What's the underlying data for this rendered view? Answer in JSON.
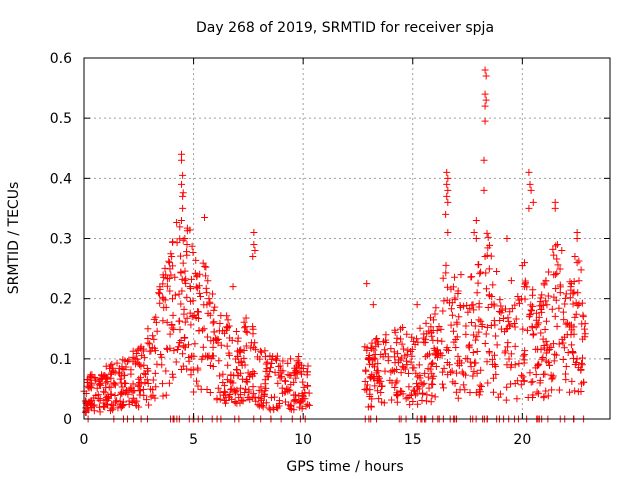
{
  "chart_data": {
    "type": "scatter",
    "title": "Day 268 of 2019, SRMTID for receiver spja",
    "xlabel": "GPS time / hours",
    "ylabel": "SRMTID / TECUs",
    "xlim": [
      0,
      24
    ],
    "ylim": [
      0,
      0.6
    ],
    "xticks": [
      0,
      5,
      10,
      15,
      20
    ],
    "xtick_labels": [
      "0",
      "5",
      "10",
      "15",
      "20"
    ],
    "yticks": [
      0,
      0.1,
      0.2,
      0.3,
      0.4,
      0.5,
      0.6
    ],
    "ytick_labels": [
      "0",
      "0.1",
      "0.2",
      "0.3",
      "0.4",
      "0.5",
      "0.6"
    ],
    "grid": true,
    "marker": "+",
    "series": [
      {
        "name": "SRMTID",
        "color": "#ff0000",
        "segments": [
          {
            "x_range": [
              0.0,
              10.3
            ],
            "envelope": [
              [
                0.0,
                0.04
              ],
              [
                0.5,
                0.045
              ],
              [
                1.0,
                0.05
              ],
              [
                1.5,
                0.055
              ],
              [
                2.0,
                0.06
              ],
              [
                2.5,
                0.07
              ],
              [
                3.0,
                0.09
              ],
              [
                3.5,
                0.13
              ],
              [
                4.0,
                0.17
              ],
              [
                4.5,
                0.22
              ],
              [
                5.0,
                0.16
              ],
              [
                5.5,
                0.15
              ],
              [
                6.0,
                0.11
              ],
              [
                6.5,
                0.1
              ],
              [
                7.0,
                0.09
              ],
              [
                7.5,
                0.1
              ],
              [
                8.0,
                0.07
              ],
              [
                8.5,
                0.06
              ],
              [
                9.0,
                0.06
              ],
              [
                9.5,
                0.06
              ],
              [
                10.0,
                0.06
              ],
              [
                10.3,
                0.05
              ]
            ],
            "count": 700
          },
          {
            "x_range": [
              12.8,
              22.9
            ],
            "envelope": [
              [
                12.8,
                0.07
              ],
              [
                13.5,
                0.08
              ],
              [
                14.0,
                0.09
              ],
              [
                14.5,
                0.09
              ],
              [
                15.0,
                0.08
              ],
              [
                15.5,
                0.09
              ],
              [
                16.0,
                0.1
              ],
              [
                16.5,
                0.16
              ],
              [
                17.0,
                0.13
              ],
              [
                17.5,
                0.13
              ],
              [
                18.0,
                0.15
              ],
              [
                18.4,
                0.19
              ],
              [
                19.0,
                0.12
              ],
              [
                19.5,
                0.11
              ],
              [
                20.0,
                0.13
              ],
              [
                20.5,
                0.14
              ],
              [
                21.0,
                0.13
              ],
              [
                21.5,
                0.17
              ],
              [
                22.0,
                0.12
              ],
              [
                22.5,
                0.16
              ],
              [
                22.9,
                0.12
              ]
            ],
            "count": 650
          }
        ],
        "peaks": [
          [
            4.45,
            0.44
          ],
          [
            4.45,
            0.43
          ],
          [
            4.5,
            0.405
          ],
          [
            4.45,
            0.39
          ],
          [
            4.5,
            0.37
          ],
          [
            4.5,
            0.35
          ],
          [
            4.45,
            0.33
          ],
          [
            4.6,
            0.3
          ],
          [
            4.7,
            0.29
          ],
          [
            4.0,
            0.27
          ],
          [
            5.5,
            0.335
          ],
          [
            7.75,
            0.31
          ],
          [
            7.75,
            0.29
          ],
          [
            7.8,
            0.28
          ],
          [
            7.7,
            0.27
          ],
          [
            16.55,
            0.41
          ],
          [
            16.6,
            0.4
          ],
          [
            16.55,
            0.39
          ],
          [
            16.6,
            0.38
          ],
          [
            16.55,
            0.37
          ],
          [
            16.6,
            0.36
          ],
          [
            16.5,
            0.34
          ],
          [
            16.6,
            0.31
          ],
          [
            17.9,
            0.33
          ],
          [
            17.8,
            0.31
          ],
          [
            17.9,
            0.3
          ],
          [
            18.3,
            0.58
          ],
          [
            18.35,
            0.57
          ],
          [
            18.3,
            0.54
          ],
          [
            18.35,
            0.53
          ],
          [
            18.3,
            0.52
          ],
          [
            18.3,
            0.495
          ],
          [
            18.25,
            0.43
          ],
          [
            18.25,
            0.38
          ],
          [
            18.3,
            0.27
          ],
          [
            20.3,
            0.41
          ],
          [
            20.35,
            0.39
          ],
          [
            20.4,
            0.38
          ],
          [
            20.5,
            0.36
          ],
          [
            20.3,
            0.35
          ],
          [
            20.1,
            0.26
          ],
          [
            20.0,
            0.255
          ],
          [
            21.5,
            0.36
          ],
          [
            21.5,
            0.35
          ],
          [
            21.6,
            0.29
          ],
          [
            21.8,
            0.28
          ],
          [
            22.5,
            0.31
          ],
          [
            22.5,
            0.3
          ],
          [
            22.4,
            0.27
          ],
          [
            22.5,
            0.26
          ],
          [
            12.9,
            0.225
          ],
          [
            13.2,
            0.19
          ],
          [
            5.6,
            0.21
          ],
          [
            5.7,
            0.2
          ],
          [
            3.9,
            0.26
          ],
          [
            6.8,
            0.22
          ],
          [
            19.3,
            0.3
          ],
          [
            19.5,
            0.23
          ],
          [
            15.2,
            0.19
          ],
          [
            17.2,
            0.24
          ]
        ]
      }
    ]
  }
}
